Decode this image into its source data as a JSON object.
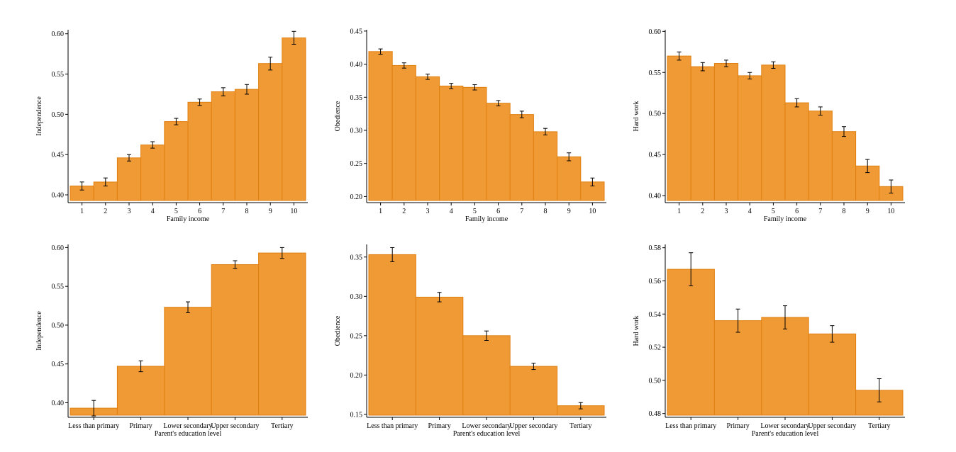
{
  "style": {
    "bar_fill": "#f09a35",
    "bar_stroke": "#e07f10",
    "error_bar_color": "#000000"
  },
  "chart_data": [
    {
      "type": "bar",
      "xlabel": "Family income",
      "ylabel": "Independence",
      "categories": [
        "1",
        "2",
        "3",
        "4",
        "5",
        "6",
        "7",
        "8",
        "9",
        "10"
      ],
      "values": [
        0.411,
        0.416,
        0.446,
        0.462,
        0.491,
        0.515,
        0.528,
        0.531,
        0.563,
        0.595
      ],
      "error": [
        0.005,
        0.005,
        0.004,
        0.004,
        0.004,
        0.004,
        0.005,
        0.006,
        0.008,
        0.008
      ],
      "ylim": [
        0.393,
        0.605
      ],
      "yticks": [
        0.4,
        0.45,
        0.5,
        0.55,
        0.6
      ],
      "yticklabels": [
        "0.40",
        "0.45",
        "0.50",
        "0.55",
        "0.60"
      ]
    },
    {
      "type": "bar",
      "xlabel": "Family income",
      "ylabel": "Obedience",
      "categories": [
        "1",
        "2",
        "3",
        "4",
        "5",
        "6",
        "7",
        "8",
        "9",
        "10"
      ],
      "values": [
        0.419,
        0.398,
        0.381,
        0.367,
        0.365,
        0.341,
        0.324,
        0.298,
        0.26,
        0.222
      ],
      "error": [
        0.004,
        0.004,
        0.004,
        0.004,
        0.004,
        0.004,
        0.005,
        0.005,
        0.006,
        0.006
      ],
      "ylim": [
        0.194,
        0.452
      ],
      "yticks": [
        0.2,
        0.25,
        0.3,
        0.35,
        0.4,
        0.45
      ],
      "yticklabels": [
        "0.20",
        "0.25",
        "0.30",
        "0.35",
        "0.40",
        "0.45"
      ]
    },
    {
      "type": "bar",
      "xlabel": "Family income",
      "ylabel": "Hard work",
      "categories": [
        "1",
        "2",
        "3",
        "4",
        "5",
        "6",
        "7",
        "8",
        "9",
        "10"
      ],
      "values": [
        0.57,
        0.557,
        0.561,
        0.546,
        0.559,
        0.513,
        0.503,
        0.478,
        0.436,
        0.411
      ],
      "error": [
        0.005,
        0.005,
        0.004,
        0.004,
        0.004,
        0.005,
        0.005,
        0.006,
        0.008,
        0.008
      ],
      "ylim": [
        0.394,
        0.602
      ],
      "yticks": [
        0.4,
        0.45,
        0.5,
        0.55,
        0.6
      ],
      "yticklabels": [
        "0.40",
        "0.45",
        "0.50",
        "0.55",
        "0.60"
      ]
    },
    {
      "type": "bar",
      "xlabel": "Parent's education level",
      "ylabel": "Independence",
      "categories": [
        "Less than primary",
        "Primary",
        "Lower secondary",
        "Upper secondary",
        "Tertiary"
      ],
      "values": [
        0.393,
        0.447,
        0.523,
        0.578,
        0.593
      ],
      "error": [
        0.01,
        0.007,
        0.007,
        0.005,
        0.007
      ],
      "ylim": [
        0.384,
        0.604
      ],
      "yticks": [
        0.4,
        0.45,
        0.5,
        0.55,
        0.6
      ],
      "yticklabels": [
        "0.40",
        "0.45",
        "0.50",
        "0.55",
        "0.60"
      ]
    },
    {
      "type": "bar",
      "xlabel": "Parent's education level",
      "ylabel": "Obedience",
      "categories": [
        "Less than primary",
        "Primary",
        "Lower secondary",
        "Upper secondary",
        "Tertiary"
      ],
      "values": [
        0.353,
        0.299,
        0.25,
        0.211,
        0.161
      ],
      "error": [
        0.009,
        0.006,
        0.006,
        0.004,
        0.004
      ],
      "ylim": [
        0.149,
        0.366
      ],
      "yticks": [
        0.15,
        0.2,
        0.25,
        0.3,
        0.35
      ],
      "yticklabels": [
        "0.15",
        "0.20",
        "0.25",
        "0.30",
        "0.35"
      ]
    },
    {
      "type": "bar",
      "xlabel": "Parent's education level",
      "ylabel": "Hard work",
      "categories": [
        "Less than primary",
        "Primary",
        "Lower secondary",
        "Upper secondary",
        "Tertiary"
      ],
      "values": [
        0.567,
        0.536,
        0.538,
        0.528,
        0.494
      ],
      "error": [
        0.01,
        0.007,
        0.007,
        0.005,
        0.007
      ],
      "ylim": [
        0.479,
        0.582
      ],
      "yticks": [
        0.48,
        0.5,
        0.52,
        0.54,
        0.56,
        0.58
      ],
      "yticklabels": [
        "0.48",
        "0.50",
        "0.52",
        "0.54",
        "0.56",
        "0.58"
      ]
    }
  ]
}
